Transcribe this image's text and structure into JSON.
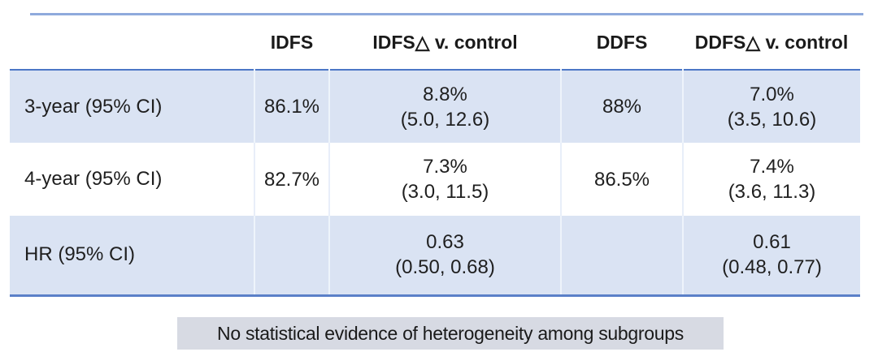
{
  "colors": {
    "row_highlight": "#dae3f3",
    "rule_dark": "#4c77c6",
    "rule_bottom": "#5b80c8",
    "rule_light_top": "#8faadc",
    "note_background": "#d7dae3",
    "text": "#1f1f1f"
  },
  "table": {
    "columns": [
      "",
      "IDFS",
      "IDFS△ v. control",
      "DDFS",
      "DDFS△ v. control"
    ],
    "rows": [
      {
        "label": "3-year (95% CI)",
        "cells": [
          {
            "line1": "86.1%",
            "line2": ""
          },
          {
            "line1": "8.8%",
            "line2": "(5.0, 12.6)"
          },
          {
            "line1": "88%",
            "line2": ""
          },
          {
            "line1": "7.0%",
            "line2": "(3.5, 10.6)"
          }
        ]
      },
      {
        "label": "4-year (95% CI)",
        "cells": [
          {
            "line1": "82.7%",
            "line2": ""
          },
          {
            "line1": "7.3%",
            "line2": "(3.0, 11.5)"
          },
          {
            "line1": "86.5%",
            "line2": ""
          },
          {
            "line1": "7.4%",
            "line2": "(3.6, 11.3)"
          }
        ]
      },
      {
        "label": "HR (95% CI)",
        "cells": [
          {
            "line1": "",
            "line2": ""
          },
          {
            "line1": "0.63",
            "line2": "(0.50, 0.68)"
          },
          {
            "line1": "",
            "line2": ""
          },
          {
            "line1": "0.61",
            "line2": "(0.48, 0.77)"
          }
        ]
      }
    ]
  },
  "footer": {
    "note": "No statistical evidence of heterogeneity among subgroups"
  }
}
